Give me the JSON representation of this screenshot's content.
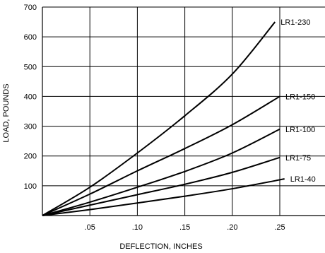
{
  "chart_data": {
    "type": "line",
    "title": "",
    "xlabel": "DEFLECTION, INCHES",
    "ylabel": "LOAD, POUNDS",
    "xlim": [
      0,
      0.25
    ],
    "ylim": [
      0,
      700
    ],
    "grid": true,
    "x_ticks": [
      0.05,
      0.1,
      0.15,
      0.2,
      0.25
    ],
    "x_tick_labels": [
      ".05",
      ".10",
      ".15",
      ".20",
      ".25"
    ],
    "y_ticks": [
      100,
      200,
      300,
      400,
      500,
      600,
      700
    ],
    "y_tick_labels": [
      "100",
      "200",
      "300",
      "400",
      "500",
      "600",
      "700"
    ],
    "series": [
      {
        "name": "LR1-230",
        "x": [
          0,
          0.05,
          0.1,
          0.15,
          0.2,
          0.245
        ],
        "y": [
          0,
          95,
          210,
          335,
          475,
          650
        ]
      },
      {
        "name": "LR1-150",
        "x": [
          0,
          0.05,
          0.1,
          0.15,
          0.2,
          0.25
        ],
        "y": [
          0,
          72,
          150,
          225,
          305,
          400
        ]
      },
      {
        "name": "LR1-100",
        "x": [
          0,
          0.05,
          0.1,
          0.15,
          0.2,
          0.25
        ],
        "y": [
          0,
          45,
          95,
          148,
          210,
          290
        ]
      },
      {
        "name": "LR1-75",
        "x": [
          0,
          0.05,
          0.1,
          0.15,
          0.2,
          0.25
        ],
        "y": [
          0,
          35,
          70,
          105,
          145,
          195
        ]
      },
      {
        "name": "LR1-40",
        "x": [
          0,
          0.05,
          0.1,
          0.15,
          0.2,
          0.255
        ],
        "y": [
          0,
          20,
          42,
          65,
          90,
          123
        ]
      }
    ]
  }
}
